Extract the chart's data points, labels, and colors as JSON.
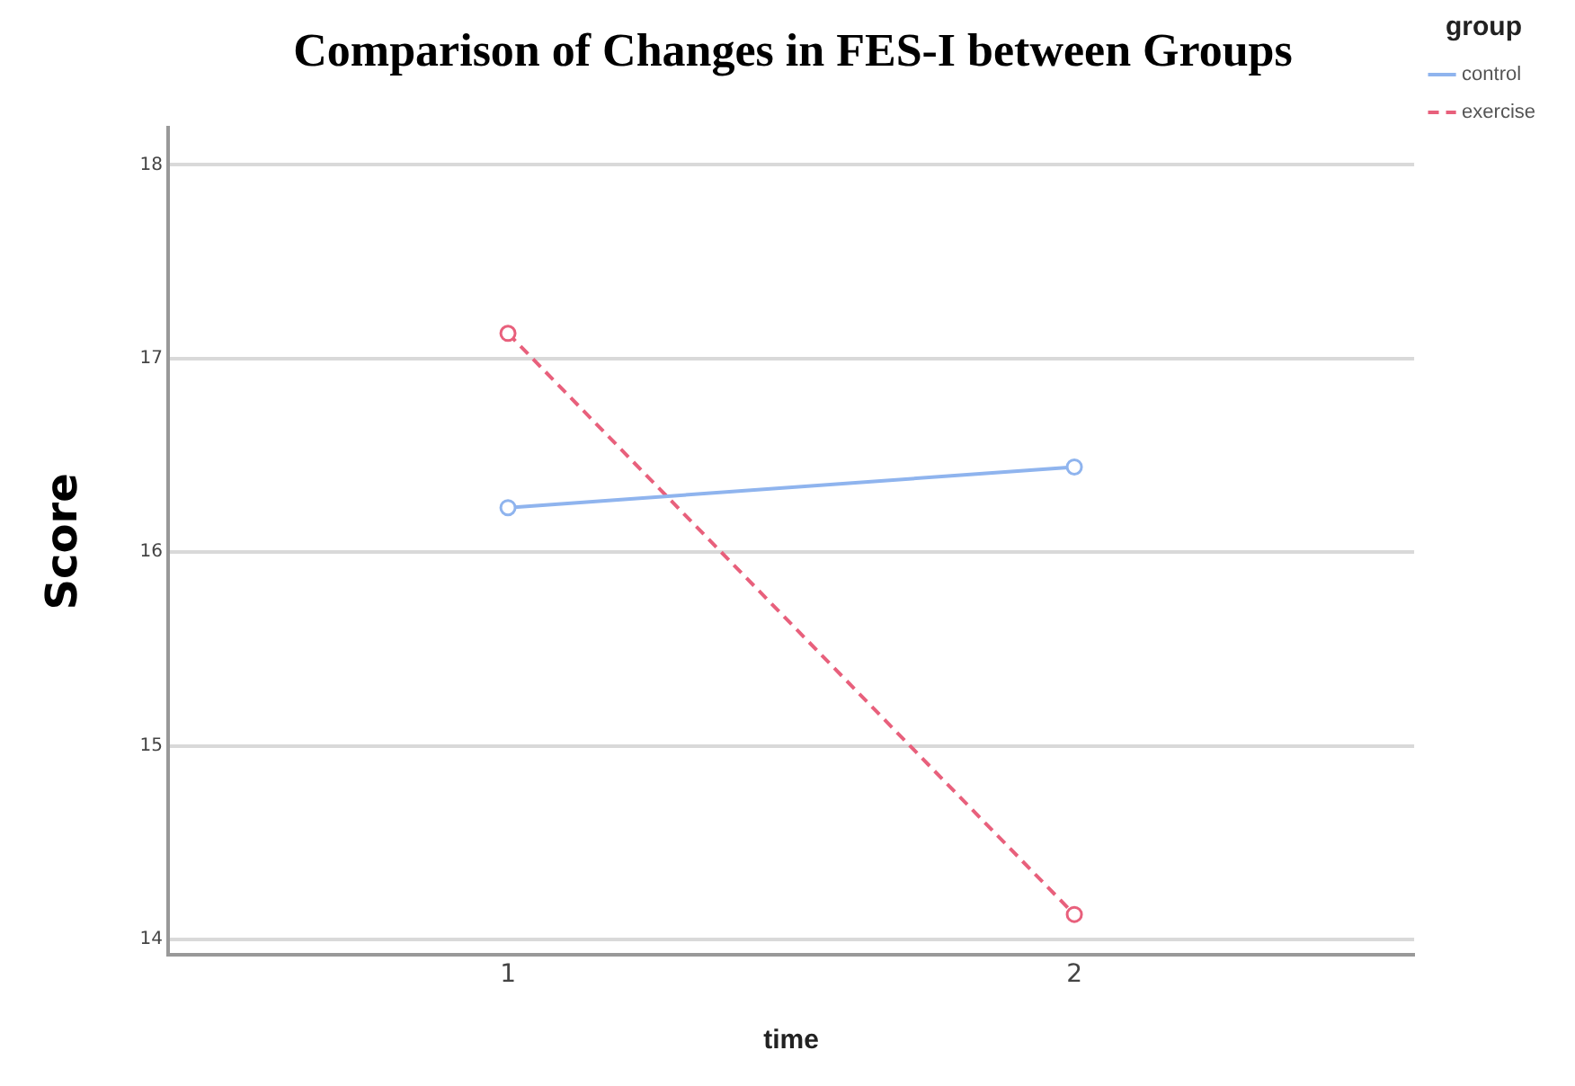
{
  "chart_data": {
    "type": "line",
    "title": "Comparison of Changes in FES-I between Groups",
    "xlabel": "time",
    "ylabel": "Score",
    "legend_title": "group",
    "x": [
      1,
      2
    ],
    "xlim": [
      0.4,
      2.6
    ],
    "xticks": [
      1,
      2
    ],
    "ylim": [
      13.92,
      18.19
    ],
    "yticks": [
      14,
      15,
      16,
      17,
      18
    ],
    "series": [
      {
        "name": "control",
        "color": "#8fb4ee",
        "values": [
          16.23,
          16.44
        ],
        "line_style": "solid"
      },
      {
        "name": "exercise",
        "color": "#e8607c",
        "values": [
          17.13,
          14.13
        ],
        "line_style": "dashed"
      }
    ],
    "grid": "y",
    "legend": "top right",
    "marker": "circle"
  }
}
